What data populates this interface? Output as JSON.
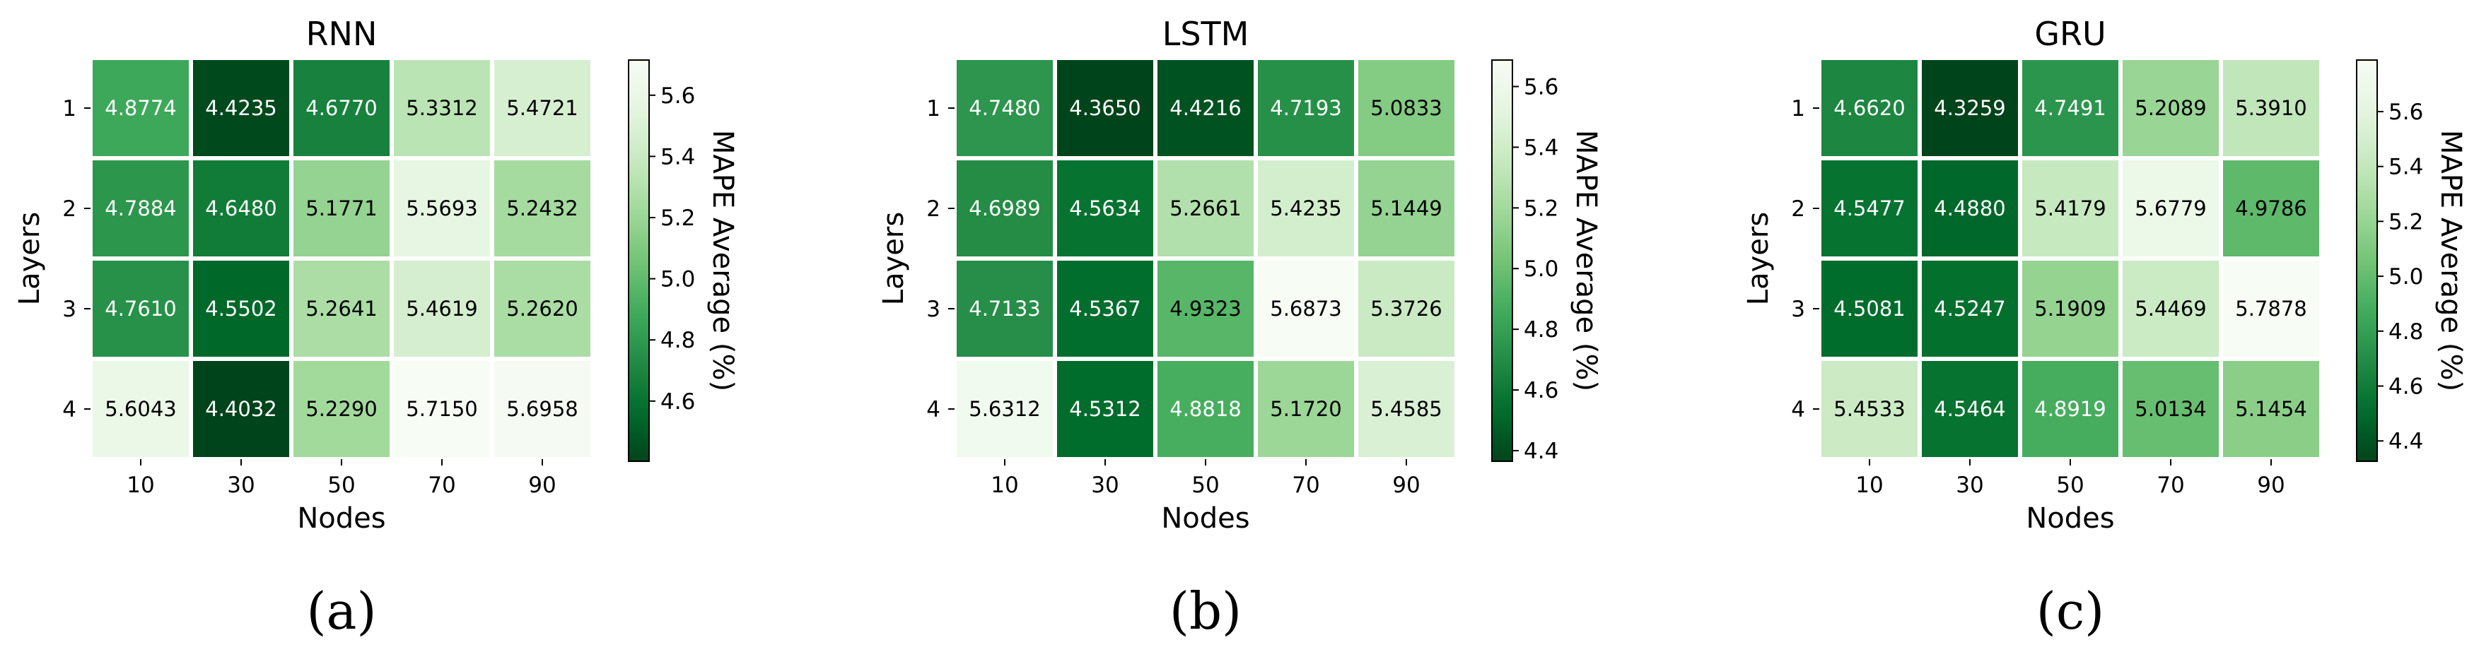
{
  "chart_data": [
    {
      "type": "heatmap",
      "title": "RNN",
      "xlabel": "Nodes",
      "ylabel": "Layers",
      "x_categories": [
        "10",
        "30",
        "50",
        "70",
        "90"
      ],
      "y_categories": [
        "1",
        "2",
        "3",
        "4"
      ],
      "values": [
        [
          4.8774,
          4.4235,
          4.677,
          5.3312,
          5.4721
        ],
        [
          4.7884,
          4.648,
          5.1771,
          5.5693,
          5.2432
        ],
        [
          4.761,
          4.5502,
          5.2641,
          5.4619,
          5.262
        ],
        [
          5.6043,
          4.4032,
          5.229,
          5.715,
          5.6958
        ]
      ],
      "value_labels": [
        [
          "4.8774",
          "4.4235",
          "4.6770",
          "5.3312",
          "5.4721"
        ],
        [
          "4.7884",
          "4.6480",
          "5.1771",
          "5.5693",
          "5.2432"
        ],
        [
          "4.7610",
          "4.5502",
          "5.2641",
          "5.4619",
          "5.2620"
        ],
        [
          "5.6043",
          "4.4032",
          "5.2290",
          "5.7150",
          "5.6958"
        ]
      ],
      "colorbar": {
        "label": "MAPE Average (%)",
        "ticks": [
          4.6,
          4.8,
          5.0,
          5.2,
          5.4,
          5.6
        ],
        "tick_labels": [
          "4.6",
          "4.8",
          "5.0",
          "5.2",
          "5.4",
          "5.6"
        ],
        "range": [
          4.4032,
          5.715
        ],
        "colormap": "Greens (reversed)"
      },
      "caption": "(a)"
    },
    {
      "type": "heatmap",
      "title": "LSTM",
      "xlabel": "Nodes",
      "ylabel": "Layers",
      "x_categories": [
        "10",
        "30",
        "50",
        "70",
        "90"
      ],
      "y_categories": [
        "1",
        "2",
        "3",
        "4"
      ],
      "values": [
        [
          4.748,
          4.365,
          4.4216,
          4.7193,
          5.0833
        ],
        [
          4.6989,
          4.5634,
          5.2661,
          5.4235,
          5.1449
        ],
        [
          4.7133,
          4.5367,
          4.9323,
          5.6873,
          5.3726
        ],
        [
          5.6312,
          4.5312,
          4.8818,
          5.172,
          5.4585
        ]
      ],
      "value_labels": [
        [
          "4.7480",
          "4.3650",
          "4.4216",
          "4.7193",
          "5.0833"
        ],
        [
          "4.6989",
          "4.5634",
          "5.2661",
          "5.4235",
          "5.1449"
        ],
        [
          "4.7133",
          "4.5367",
          "4.9323",
          "5.6873",
          "5.3726"
        ],
        [
          "5.6312",
          "4.5312",
          "4.8818",
          "5.1720",
          "5.4585"
        ]
      ],
      "colorbar": {
        "label": "MAPE Average (%)",
        "ticks": [
          4.4,
          4.6,
          4.8,
          5.0,
          5.2,
          5.4,
          5.6
        ],
        "tick_labels": [
          "4.4",
          "4.6",
          "4.8",
          "5.0",
          "5.2",
          "5.4",
          "5.6"
        ],
        "range": [
          4.365,
          5.6873
        ],
        "colormap": "Greens (reversed)"
      },
      "caption": "(b)"
    },
    {
      "type": "heatmap",
      "title": "GRU",
      "xlabel": "Nodes",
      "ylabel": "Layers",
      "x_categories": [
        "10",
        "30",
        "50",
        "70",
        "90"
      ],
      "y_categories": [
        "1",
        "2",
        "3",
        "4"
      ],
      "values": [
        [
          4.662,
          4.3259,
          4.7491,
          5.2089,
          5.391
        ],
        [
          4.5477,
          4.488,
          5.4179,
          5.6779,
          4.9786
        ],
        [
          4.5081,
          4.5247,
          5.1909,
          5.4469,
          5.7878
        ],
        [
          5.4533,
          4.5464,
          4.8919,
          5.0134,
          5.1454
        ]
      ],
      "value_labels": [
        [
          "4.6620",
          "4.3259",
          "4.7491",
          "5.2089",
          "5.3910"
        ],
        [
          "4.5477",
          "4.4880",
          "5.4179",
          "5.6779",
          "4.9786"
        ],
        [
          "4.5081",
          "4.5247",
          "5.1909",
          "5.4469",
          "5.7878"
        ],
        [
          "5.4533",
          "4.5464",
          "4.8919",
          "5.0134",
          "5.1454"
        ]
      ],
      "colorbar": {
        "label": "MAPE Average (%)",
        "ticks": [
          4.4,
          4.6,
          4.8,
          5.0,
          5.2,
          5.4,
          5.6
        ],
        "tick_labels": [
          "4.4",
          "4.6",
          "4.8",
          "5.0",
          "5.2",
          "5.4",
          "5.6"
        ],
        "range": [
          4.3259,
          5.7878
        ],
        "colormap": "Greens (reversed)"
      },
      "caption": "(c)"
    }
  ]
}
